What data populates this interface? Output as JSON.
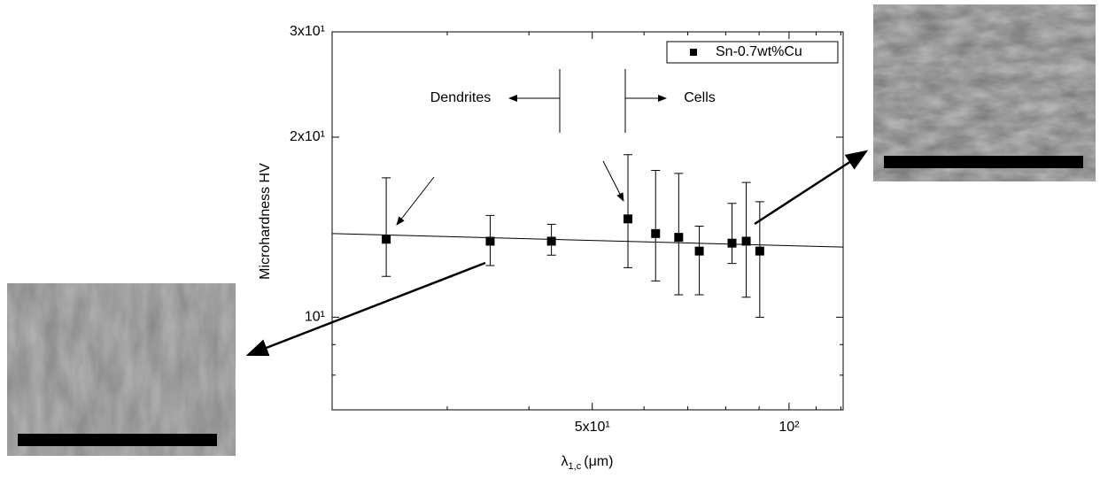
{
  "chart_data": {
    "type": "scatter",
    "x_label": {
      "symbol": "λ",
      "subscript": "1,c",
      "unit": "(μm)"
    },
    "y_label": "Microhardness HV",
    "x": [
      24.2,
      34.9,
      43.3,
      56.7,
      62.5,
      67.8,
      72.9,
      81.8,
      86.0,
      90.2
    ],
    "series": [
      {
        "name": "Sn-0.7wt%Cu",
        "color": "#000000",
        "values": [
          13.5,
          13.4,
          13.4,
          14.6,
          13.8,
          13.6,
          12.9,
          13.3,
          13.4,
          12.9
        ],
        "yerr_minus": [
          1.8,
          1.2,
          0.7,
          2.5,
          2.3,
          2.7,
          2.0,
          1.0,
          2.6,
          2.9
        ],
        "yerr_plus": [
          3.6,
          1.4,
          0.9,
          4.1,
          3.8,
          3.8,
          1.3,
          2.2,
          3.4,
          2.7
        ]
      }
    ],
    "fit_line": {
      "x": [
        20,
        121
      ],
      "y": [
        13.8,
        13.1
      ]
    },
    "xlim": [
      20,
      121
    ],
    "ylim": [
      7,
      30
    ],
    "log_x": true,
    "log_y": true,
    "xticks": [
      {
        "value": 50,
        "label": "5x10¹"
      },
      {
        "value": 100,
        "label": "10²"
      }
    ],
    "yticks": [
      {
        "value": 10,
        "label": "10¹"
      },
      {
        "value": 20,
        "label": "2x10¹"
      },
      {
        "value": 30,
        "label": "3x10¹"
      }
    ],
    "xminor": [
      30,
      40,
      60,
      70,
      80,
      90,
      110,
      120
    ],
    "yminor": [
      8,
      9
    ],
    "annotations": [
      "Dendrites",
      "Cells"
    ],
    "legend": "upper right"
  }
}
